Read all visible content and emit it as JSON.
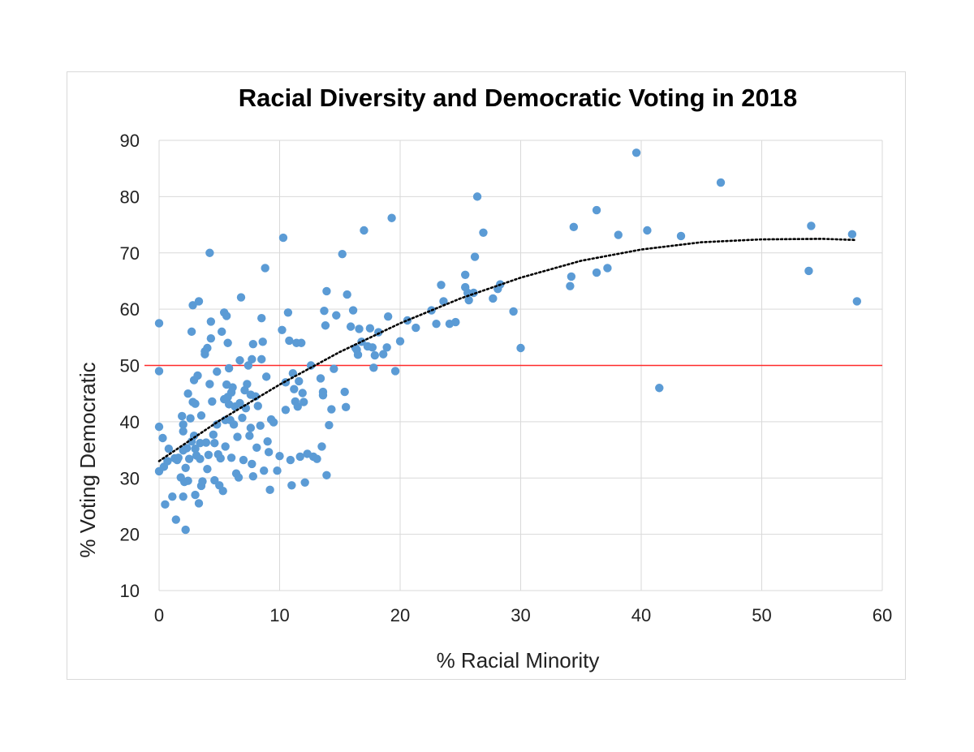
{
  "chart_data": {
    "type": "scatter",
    "title": "Racial Diversity and Democratic Voting in 2018",
    "xlabel": "% Racial Minority",
    "ylabel": "% Voting Democratic",
    "xlim": [
      0,
      60
    ],
    "ylim": [
      10,
      90
    ],
    "xticks": [
      0,
      10,
      20,
      30,
      40,
      50,
      60
    ],
    "yticks": [
      10,
      20,
      30,
      40,
      50,
      60,
      70,
      80,
      90
    ],
    "grid": true,
    "legend": "none",
    "colors": {
      "points": "#5b9bd5",
      "reference_line": "#ff2a2a",
      "trendline": "#000000",
      "grid": "#d9d9d9"
    },
    "reference_line": {
      "y": 50
    },
    "trendline": {
      "type": "polynomial-2",
      "style": "dotted",
      "x": [
        0,
        5,
        10,
        15,
        20,
        25,
        30,
        35,
        40,
        45,
        50,
        55,
        57.7
      ],
      "y": [
        33.0,
        40.2,
        46.6,
        52.4,
        57.5,
        61.9,
        65.6,
        68.6,
        70.6,
        71.9,
        72.4,
        72.5,
        72.3
      ]
    },
    "points": [
      [
        0,
        57.5
      ],
      [
        0,
        49
      ],
      [
        0,
        39.1
      ],
      [
        0,
        31.2
      ],
      [
        0.3,
        37.1
      ],
      [
        0.4,
        32
      ],
      [
        0.5,
        25.3
      ],
      [
        0.7,
        33
      ],
      [
        0.8,
        35.2
      ],
      [
        1.1,
        26.7
      ],
      [
        1.3,
        33.5
      ],
      [
        1.4,
        22.6
      ],
      [
        1.5,
        33.2
      ],
      [
        1.6,
        33.6
      ],
      [
        1.8,
        30.1
      ],
      [
        1.9,
        41
      ],
      [
        2,
        39.5
      ],
      [
        2,
        34.9
      ],
      [
        2,
        26.7
      ],
      [
        2,
        38.3
      ],
      [
        2.1,
        29.3
      ],
      [
        2.2,
        31.8
      ],
      [
        2.2,
        20.8
      ],
      [
        2.3,
        35.3
      ],
      [
        2.4,
        29.5
      ],
      [
        2.4,
        45
      ],
      [
        2.5,
        33.4
      ],
      [
        2.6,
        40.6
      ],
      [
        2.7,
        56
      ],
      [
        2.7,
        36.5
      ],
      [
        2.8,
        60.7
      ],
      [
        2.8,
        43.5
      ],
      [
        2.9,
        37.5
      ],
      [
        2.9,
        47.4
      ],
      [
        3,
        43.2
      ],
      [
        3,
        35.2
      ],
      [
        3,
        27
      ],
      [
        3.1,
        34
      ],
      [
        3.2,
        48.2
      ],
      [
        3.3,
        61.4
      ],
      [
        3.3,
        25.5
      ],
      [
        3.4,
        33.4
      ],
      [
        3.4,
        36.2
      ],
      [
        3.5,
        28.6
      ],
      [
        3.5,
        41.1
      ],
      [
        3.6,
        29.4
      ],
      [
        3.8,
        52
      ],
      [
        3.8,
        52.5
      ],
      [
        3.9,
        36.3
      ],
      [
        4,
        31.6
      ],
      [
        4,
        53.1
      ],
      [
        4.1,
        34.1
      ],
      [
        4.2,
        70
      ],
      [
        4.2,
        46.7
      ],
      [
        4.3,
        54.8
      ],
      [
        4.3,
        57.8
      ],
      [
        4.4,
        43.6
      ],
      [
        4.5,
        37.7
      ],
      [
        4.6,
        36.2
      ],
      [
        4.6,
        29.6
      ],
      [
        4.8,
        48.9
      ],
      [
        4.8,
        39.5
      ],
      [
        4.9,
        34.2
      ],
      [
        5,
        28.7
      ],
      [
        5.1,
        33.5
      ],
      [
        5.2,
        56
      ],
      [
        5.3,
        27.7
      ],
      [
        5.4,
        59.4
      ],
      [
        5.4,
        44
      ],
      [
        5.5,
        40.3
      ],
      [
        5.5,
        35.6
      ],
      [
        5.6,
        46.6
      ],
      [
        5.6,
        58.8
      ],
      [
        5.7,
        54
      ],
      [
        5.7,
        44.4
      ],
      [
        5.8,
        49.5
      ],
      [
        5.8,
        43.1
      ],
      [
        5.9,
        40.3
      ],
      [
        6,
        45.2
      ],
      [
        6,
        33.6
      ],
      [
        6.1,
        46.1
      ],
      [
        6.2,
        39.5
      ],
      [
        6.3,
        42.7
      ],
      [
        6.4,
        30.8
      ],
      [
        6.5,
        37.3
      ],
      [
        6.6,
        30.1
      ],
      [
        6.7,
        50.9
      ],
      [
        6.7,
        43.3
      ],
      [
        6.8,
        62.1
      ],
      [
        6.9,
        40.7
      ],
      [
        7,
        33.2
      ],
      [
        7.1,
        45.6
      ],
      [
        7.2,
        42.4
      ],
      [
        7.3,
        46.7
      ],
      [
        7.4,
        50
      ],
      [
        7.5,
        37.5
      ],
      [
        7.6,
        44.8
      ],
      [
        7.6,
        38.9
      ],
      [
        7.7,
        51.1
      ],
      [
        7.7,
        32.5
      ],
      [
        7.8,
        53.8
      ],
      [
        7.8,
        30.3
      ],
      [
        8,
        44.5
      ],
      [
        8.1,
        35.4
      ],
      [
        8.2,
        42.8
      ],
      [
        8.4,
        39.3
      ],
      [
        8.5,
        58.4
      ],
      [
        8.5,
        51.1
      ],
      [
        8.6,
        54.2
      ],
      [
        8.7,
        31.3
      ],
      [
        8.8,
        67.3
      ],
      [
        8.9,
        48
      ],
      [
        9,
        36.5
      ],
      [
        9.1,
        34.6
      ],
      [
        9.2,
        27.9
      ],
      [
        9.3,
        40.4
      ],
      [
        9.5,
        39.9
      ],
      [
        9.8,
        31.3
      ],
      [
        10,
        33.9
      ],
      [
        10.2,
        56.3
      ],
      [
        10.3,
        72.7
      ],
      [
        10.5,
        42.1
      ],
      [
        10.5,
        47
      ],
      [
        10.7,
        59.4
      ],
      [
        10.8,
        54.4
      ],
      [
        10.9,
        33.2
      ],
      [
        11,
        28.7
      ],
      [
        11.1,
        48.6
      ],
      [
        11.2,
        45.8
      ],
      [
        11.3,
        43.6
      ],
      [
        11.4,
        54
      ],
      [
        11.5,
        42.7
      ],
      [
        11.6,
        47.2
      ],
      [
        11.7,
        33.8
      ],
      [
        11.8,
        54
      ],
      [
        11.9,
        45.1
      ],
      [
        12,
        43.5
      ],
      [
        12.1,
        29.2
      ],
      [
        12.3,
        34.3
      ],
      [
        12.6,
        50
      ],
      [
        12.8,
        33.8
      ],
      [
        13.1,
        33.4
      ],
      [
        13.4,
        47.7
      ],
      [
        13.5,
        35.6
      ],
      [
        13.6,
        44.7
      ],
      [
        13.6,
        45.3
      ],
      [
        13.7,
        59.7
      ],
      [
        13.8,
        57.1
      ],
      [
        13.9,
        63.2
      ],
      [
        13.9,
        30.5
      ],
      [
        14.1,
        39.4
      ],
      [
        14.3,
        42.2
      ],
      [
        14.5,
        49.4
      ],
      [
        14.7,
        58.9
      ],
      [
        15.2,
        69.8
      ],
      [
        15.4,
        45.3
      ],
      [
        15.5,
        42.6
      ],
      [
        15.6,
        62.6
      ],
      [
        15.9,
        56.9
      ],
      [
        16.1,
        59.8
      ],
      [
        16.3,
        53.1
      ],
      [
        16.4,
        52.8
      ],
      [
        16.5,
        51.9
      ],
      [
        16.6,
        56.5
      ],
      [
        16.8,
        54.2
      ],
      [
        17,
        74
      ],
      [
        17.3,
        53.4
      ],
      [
        17.5,
        56.6
      ],
      [
        17.7,
        53.2
      ],
      [
        17.8,
        49.6
      ],
      [
        17.9,
        51.8
      ],
      [
        18.2,
        55.9
      ],
      [
        18.6,
        52
      ],
      [
        18.9,
        53.2
      ],
      [
        19,
        58.7
      ],
      [
        19.3,
        76.2
      ],
      [
        19.6,
        49
      ],
      [
        20,
        54.3
      ],
      [
        20.6,
        58
      ],
      [
        21.3,
        56.7
      ],
      [
        22.6,
        59.8
      ],
      [
        23,
        57.4
      ],
      [
        23.4,
        64.3
      ],
      [
        23.6,
        61.4
      ],
      [
        24.1,
        57.4
      ],
      [
        24.6,
        57.7
      ],
      [
        25.4,
        66.1
      ],
      [
        25.4,
        63.9
      ],
      [
        25.6,
        62.9
      ],
      [
        25.7,
        61.6
      ],
      [
        26.1,
        62.9
      ],
      [
        26.2,
        69.3
      ],
      [
        26.4,
        80
      ],
      [
        26.9,
        73.6
      ],
      [
        27.7,
        61.9
      ],
      [
        28.1,
        63.6
      ],
      [
        28.3,
        64.4
      ],
      [
        29.4,
        59.6
      ],
      [
        30,
        53.1
      ],
      [
        34.1,
        64.1
      ],
      [
        34.2,
        65.8
      ],
      [
        34.4,
        74.6
      ],
      [
        36.3,
        77.6
      ],
      [
        36.3,
        66.5
      ],
      [
        37.2,
        67.3
      ],
      [
        38.1,
        73.2
      ],
      [
        39.6,
        87.8
      ],
      [
        40.5,
        74
      ],
      [
        41.5,
        46
      ],
      [
        43.3,
        73
      ],
      [
        46.6,
        82.5
      ],
      [
        53.9,
        66.8
      ],
      [
        54.1,
        74.8
      ],
      [
        57.5,
        73.3
      ],
      [
        57.9,
        61.4
      ]
    ]
  }
}
